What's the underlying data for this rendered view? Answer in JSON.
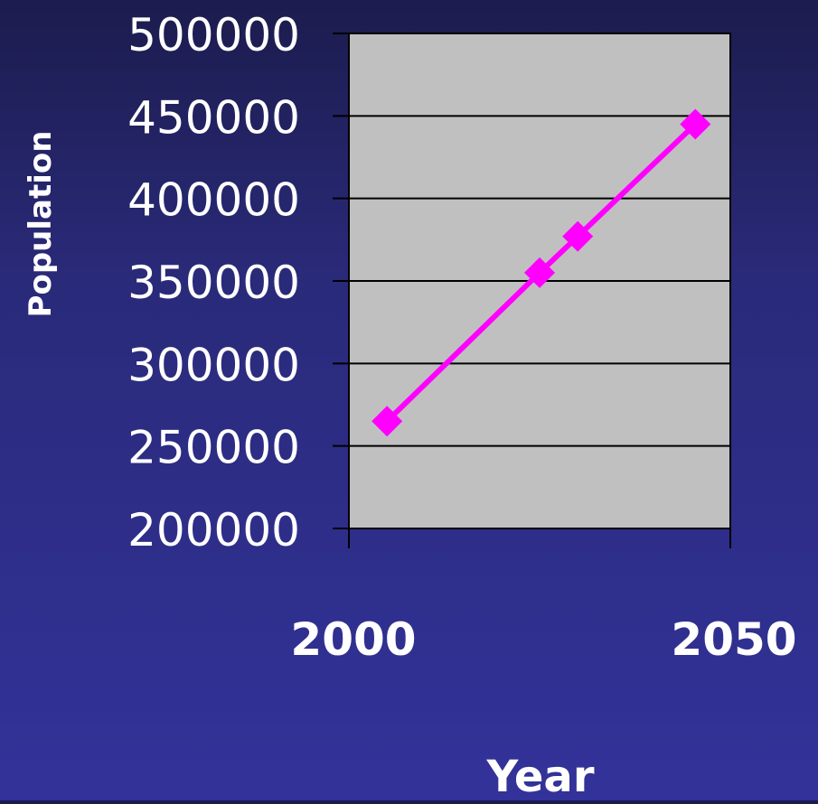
{
  "chart_data": {
    "type": "line",
    "title": "",
    "xlabel": "Year",
    "ylabel": "Population",
    "xlim": [
      1995,
      2055
    ],
    "ylim": [
      200000,
      500000
    ],
    "x_ticks": [
      2000,
      2050
    ],
    "y_ticks": [
      200000,
      250000,
      300000,
      350000,
      400000,
      450000,
      500000
    ],
    "grid": true,
    "legend": "none",
    "series": [
      {
        "name": "",
        "color": "#ff00ff",
        "marker": "diamond",
        "x": [
          2001,
          2025,
          2031,
          2049.5
        ],
        "y": [
          265000,
          355000,
          377000,
          445000
        ]
      }
    ],
    "plot_background": "#c0c0c0",
    "text_color": "#ffffff"
  }
}
